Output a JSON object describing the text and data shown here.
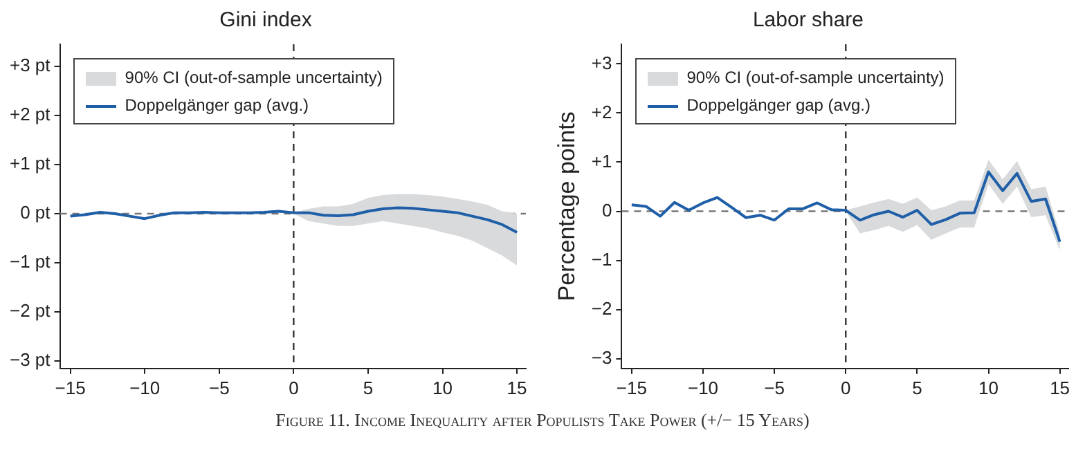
{
  "chart_data": [
    {
      "type": "line",
      "title": "Gini index",
      "legend": "top left",
      "grid": false,
      "line_style": "solid",
      "marker": "none",
      "x": [
        -15,
        -14,
        -13,
        -12,
        -11,
        -10,
        -9,
        -8,
        -7,
        -6,
        -5,
        -4,
        -3,
        -2,
        -1,
        0,
        1,
        2,
        3,
        4,
        5,
        6,
        7,
        8,
        9,
        10,
        11,
        12,
        13,
        14,
        15
      ],
      "series": [
        {
          "name": "Doppelgänger gap (avg.)",
          "color": "#1f5fa8",
          "values": [
            -0.05,
            -0.02,
            0.03,
            0,
            -0.05,
            -0.1,
            -0.03,
            0.02,
            0.02,
            0.03,
            0.02,
            0.02,
            0.02,
            0.03,
            0.05,
            0.02,
            0.02,
            -0.03,
            -0.04,
            -0.02,
            0.05,
            0.1,
            0.12,
            0.11,
            0.08,
            0.05,
            0.02,
            -0.05,
            -0.12,
            -0.22,
            -0.38
          ],
          "lower": [
            null,
            null,
            null,
            null,
            null,
            null,
            null,
            null,
            null,
            null,
            null,
            null,
            null,
            null,
            null,
            0,
            -0.15,
            -0.2,
            -0.25,
            -0.25,
            -0.2,
            -0.15,
            -0.2,
            -0.25,
            -0.3,
            -0.38,
            -0.45,
            -0.55,
            -0.7,
            -0.85,
            -1.05
          ],
          "upper": [
            null,
            null,
            null,
            null,
            null,
            null,
            null,
            null,
            null,
            null,
            null,
            null,
            null,
            null,
            null,
            0.02,
            0.1,
            0.15,
            0.15,
            0.2,
            0.32,
            0.38,
            0.4,
            0.4,
            0.38,
            0.35,
            0.3,
            0.25,
            0.18,
            0.05,
            0
          ]
        }
      ],
      "xlim": [
        -15.7,
        15.6
      ],
      "xticks": [
        {
          "value": -15,
          "label": "−15"
        },
        {
          "value": -10,
          "label": "−10"
        },
        {
          "value": -5,
          "label": "−5"
        },
        0,
        5,
        10,
        15
      ],
      "ylim": [
        -3.15,
        3.45
      ],
      "yticks": [
        {
          "value": -3,
          "label": "−3 pt"
        },
        {
          "value": -2,
          "label": "−2 pt"
        },
        {
          "value": -1,
          "label": "−1 pt"
        },
        {
          "value": 0,
          "label": "0 pt"
        },
        {
          "value": 1,
          "label": "+1 pt"
        },
        {
          "value": 2,
          "label": "+2 pt"
        },
        {
          "value": 3,
          "label": "+3 pt"
        }
      ],
      "ref_lines": [
        {
          "axis": "x",
          "value": 0,
          "color": "#333333",
          "line_style": "dashed"
        },
        {
          "axis": "y",
          "value": 0,
          "color": "#777777",
          "line_style": "dashed"
        }
      ],
      "annotations": [
        "90% CI (out-of-sample uncertainty)",
        "Figure 11. Income Inequality after Populists Take Power (+/− 15 Years)"
      ]
    },
    {
      "type": "line",
      "title": "Labor share",
      "ylabel": "Percentage points",
      "legend": "top left",
      "grid": false,
      "line_style": "solid",
      "marker": "none",
      "x": [
        -15,
        -14,
        -13,
        -12,
        -11,
        -10,
        -9,
        -8,
        -7,
        -6,
        -5,
        -4,
        -3,
        -2,
        -1,
        0,
        1,
        2,
        3,
        4,
        5,
        6,
        7,
        8,
        9,
        10,
        11,
        12,
        13,
        14,
        15
      ],
      "series": [
        {
          "name": "Doppelgänger gap (avg.)",
          "color": "#1f5fa8",
          "values": [
            0.13,
            0.1,
            -0.1,
            0.18,
            0.02,
            0.17,
            0.28,
            0.08,
            -0.13,
            -0.08,
            -0.18,
            0.05,
            0.05,
            0.17,
            0.03,
            0.02,
            -0.18,
            -0.07,
            0,
            -0.12,
            0.02,
            -0.27,
            -0.17,
            -0.04,
            -0.03,
            0.8,
            0.42,
            0.77,
            0.2,
            0.25,
            -0.62
          ],
          "lower": [
            null,
            null,
            null,
            null,
            null,
            null,
            null,
            null,
            null,
            null,
            null,
            null,
            null,
            null,
            null,
            0,
            -0.45,
            -0.38,
            -0.3,
            -0.42,
            -0.28,
            -0.58,
            -0.45,
            -0.33,
            -0.33,
            0.55,
            0.15,
            0.5,
            -0.12,
            -0.08,
            -0.8
          ],
          "upper": [
            null,
            null,
            null,
            null,
            null,
            null,
            null,
            null,
            null,
            null,
            null,
            null,
            null,
            null,
            null,
            0.02,
            0.1,
            0.18,
            0.25,
            0.15,
            0.28,
            0.02,
            0.1,
            0.22,
            0.22,
            1.05,
            0.65,
            1.02,
            0.45,
            0.5,
            -0.45
          ]
        }
      ],
      "xlim": [
        -15.7,
        15.6
      ],
      "xticks": [
        {
          "value": -15,
          "label": "−15"
        },
        {
          "value": -10,
          "label": "−10"
        },
        {
          "value": -5,
          "label": "−5"
        },
        0,
        5,
        10,
        15
      ],
      "ylim": [
        -3.2,
        3.4
      ],
      "yticks": [
        {
          "value": -3,
          "label": "−3"
        },
        {
          "value": -2,
          "label": "−2"
        },
        {
          "value": -1,
          "label": "−1"
        },
        0,
        {
          "value": 1,
          "label": "+1"
        },
        {
          "value": 2,
          "label": "+2"
        },
        {
          "value": 3,
          "label": "+3"
        }
      ],
      "ref_lines": [
        {
          "axis": "x",
          "value": 0,
          "color": "#333333",
          "line_style": "dashed"
        },
        {
          "axis": "y",
          "value": 0,
          "color": "#777777",
          "line_style": "dashed"
        }
      ],
      "annotations": [
        "90% CI (out-of-sample uncertainty)"
      ]
    }
  ]
}
